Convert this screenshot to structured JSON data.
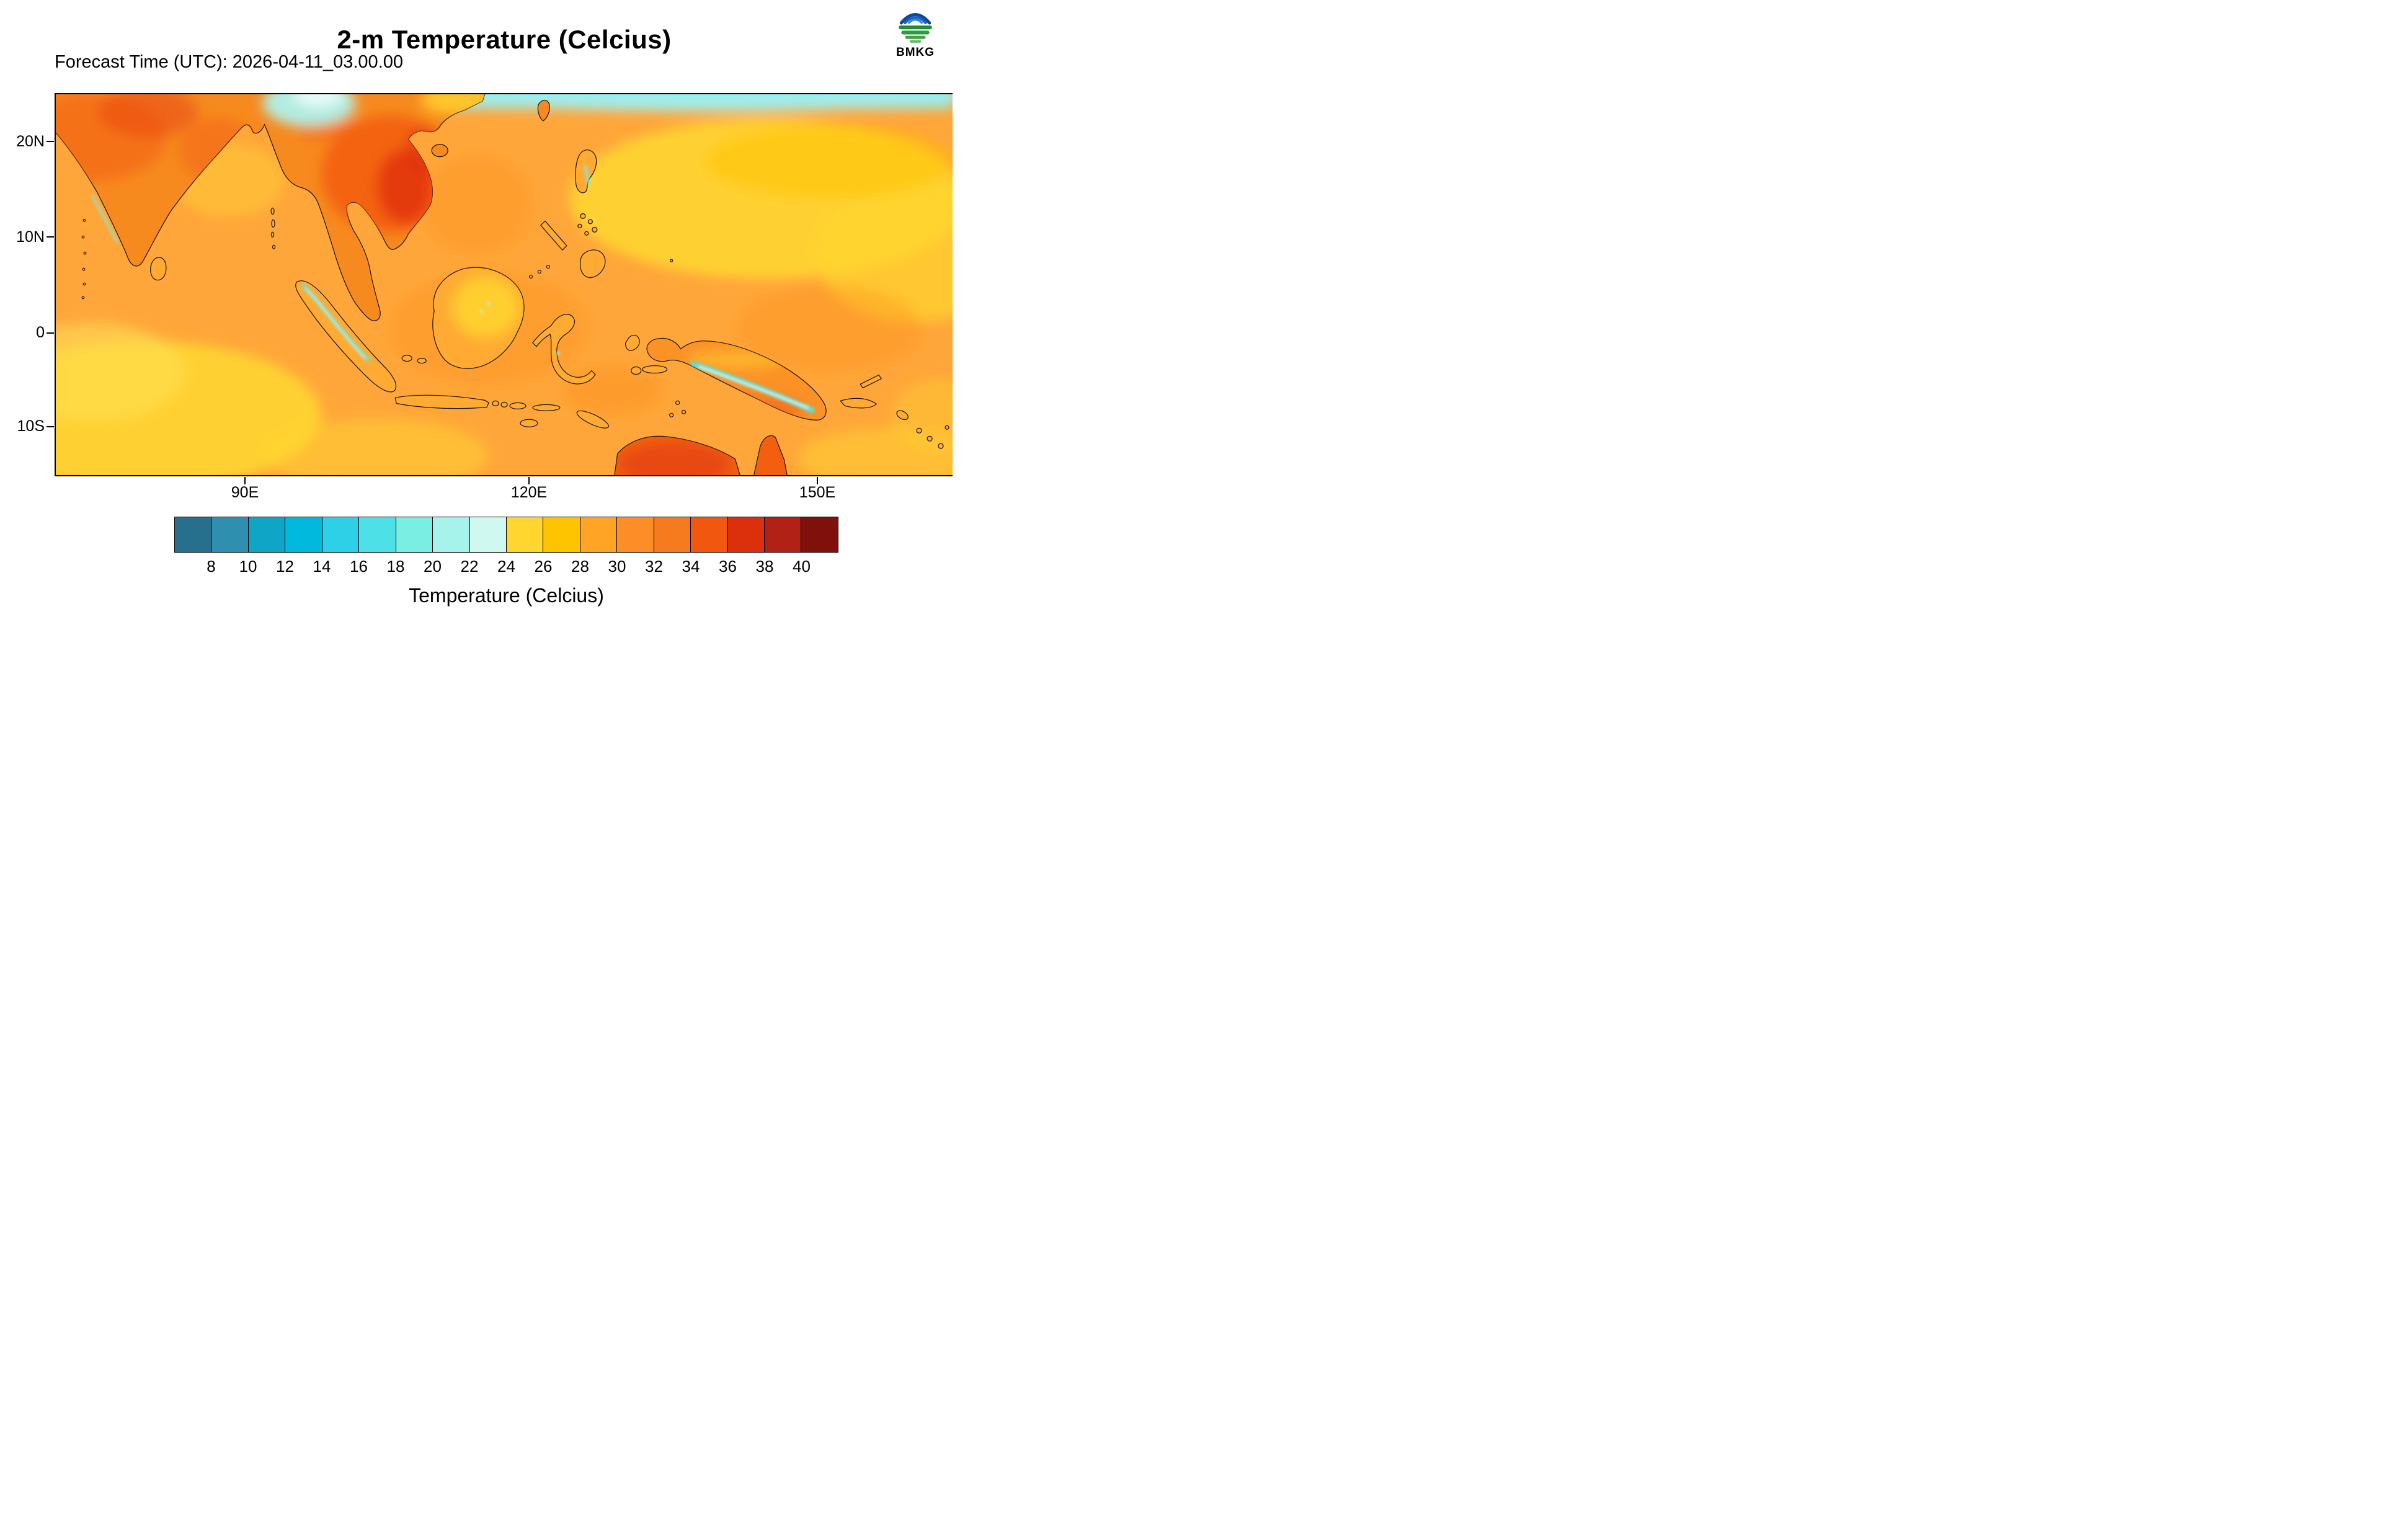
{
  "header": {
    "title": "2-m Temperature (Celcius)",
    "forecast_label": "Forecast Time (UTC): 2026-04-11_03.00.00",
    "logo_text": "BMKG"
  },
  "axes": {
    "lat_ticks": [
      {
        "label": "20N"
      },
      {
        "label": "10N"
      },
      {
        "label": "0"
      },
      {
        "label": "10S"
      }
    ],
    "lon_ticks": [
      {
        "label": "90E"
      },
      {
        "label": "120E"
      },
      {
        "label": "150E"
      }
    ]
  },
  "colorbar": {
    "levels": [
      8,
      10,
      12,
      14,
      16,
      18,
      20,
      22,
      24,
      26,
      28,
      30,
      32,
      34,
      36,
      38,
      40
    ],
    "colors": [
      "#26708e",
      "#2f8fae",
      "#0fa5c6",
      "#00b9dd",
      "#2dd0e6",
      "#4de0e6",
      "#7beee3",
      "#a5f3ea",
      "#cff8f1",
      "#ffd530",
      "#ffc400",
      "#ffa424",
      "#fd8d26",
      "#f67b1f",
      "#f1570f",
      "#dc2f0c",
      "#b22115",
      "#7f100c"
    ],
    "caption": "Temperature (Celcius)"
  },
  "chart_data": {
    "type": "heatmap",
    "variable": "2-m temperature",
    "units": "Celsius",
    "title": "2-m Temperature (Celcius)",
    "forecast_time_utc": "2026-04-11_03.00.00",
    "agency": "BMKG",
    "projection": "cylindrical latitude-longitude map",
    "extent": {
      "lon_min_deg_e": 70,
      "lon_max_deg_e": 165,
      "lat_min_deg": -15,
      "lat_max_deg": 25
    },
    "x_tick_labels": [
      "90E",
      "120E",
      "150E"
    ],
    "y_tick_labels": [
      "20N",
      "10N",
      "0",
      "10S"
    ],
    "colorbar_levels_c": [
      8,
      10,
      12,
      14,
      16,
      18,
      20,
      22,
      24,
      26,
      28,
      30,
      32,
      34,
      36,
      38,
      40
    ],
    "colorbar_colors": [
      "#26708e",
      "#2f8fae",
      "#0fa5c6",
      "#00b9dd",
      "#2dd0e6",
      "#4de0e6",
      "#7beee3",
      "#a5f3ea",
      "#cff8f1",
      "#ffd530",
      "#ffc400",
      "#ffa424",
      "#fd8d26",
      "#f67b1f",
      "#f1570f",
      "#dc2f0c",
      "#b22115",
      "#7f100c"
    ],
    "legend_caption": "Temperature (Celcius)",
    "estimated_field_values_c": [
      {
        "region": "Open ocean across most of the domain",
        "value": "28-30"
      },
      {
        "region": "Sea patches south and west of Indonesia (yellow areas)",
        "value": "24-28"
      },
      {
        "region": "Indochina interior (Thailand, Laos, Vietnam)",
        "value": "32-38"
      },
      {
        "region": "Indian subcontinent interior",
        "value": "30-36"
      },
      {
        "region": "Southern China along top edge of map",
        "value": "18-24"
      },
      {
        "region": "Himalayan foothills (top centre, cyan/white)",
        "value": "8-16"
      },
      {
        "region": "Sumatra Barisan mountains and New Guinea highlands (cyan ridges)",
        "value": "10-20"
      },
      {
        "region": "Borneo interior lowlands",
        "value": "24-28"
      },
      {
        "region": "Northern Australia (bottom right landmass)",
        "value": "32-36"
      }
    ]
  }
}
